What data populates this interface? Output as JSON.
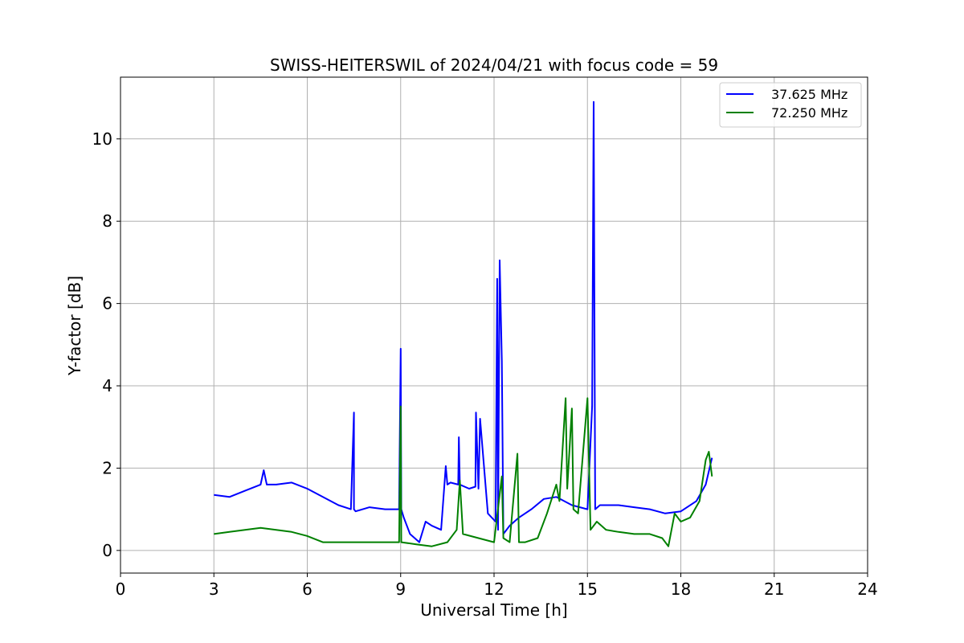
{
  "chart_data": {
    "type": "line",
    "title": "SWISS-HEITERSWIL of 2024/04/21 with focus code = 59",
    "xlabel": "Universal Time [h]",
    "ylabel": "Y-factor [dB]",
    "xlim": [
      0,
      24
    ],
    "ylim": [
      -0.55,
      11.5
    ],
    "xticks": [
      0,
      3,
      6,
      9,
      12,
      15,
      18,
      21,
      24
    ],
    "yticks": [
      0,
      2,
      4,
      6,
      8,
      10
    ],
    "xtick_labels": [
      "0",
      "3",
      "6",
      "9",
      "12",
      "15",
      "18",
      "21",
      "24"
    ],
    "ytick_labels": [
      "0",
      "2",
      "4",
      "6",
      "8",
      "10"
    ],
    "grid": true,
    "legend_position": "top-right",
    "series": [
      {
        "name": "37.625 MHz",
        "color": "#0000ff",
        "x": [
          3.0,
          3.5,
          4.0,
          4.5,
          4.6,
          4.7,
          5.0,
          5.5,
          6.0,
          6.5,
          7.0,
          7.4,
          7.5,
          7.5,
          7.55,
          8.0,
          8.5,
          8.95,
          9.0,
          9.02,
          9.1,
          9.3,
          9.6,
          9.8,
          10.0,
          10.3,
          10.45,
          10.5,
          10.6,
          10.85,
          10.87,
          10.9,
          11.2,
          11.4,
          11.42,
          11.5,
          11.55,
          11.8,
          12.05,
          12.1,
          12.13,
          12.18,
          12.25,
          12.3,
          12.5,
          12.8,
          13.2,
          13.6,
          14.0,
          14.5,
          15.0,
          15.15,
          15.2,
          15.25,
          15.4,
          16.0,
          16.5,
          17.0,
          17.5,
          18.0,
          18.5,
          18.8,
          19.0
        ],
        "y": [
          1.35,
          1.3,
          1.45,
          1.6,
          1.95,
          1.6,
          1.6,
          1.65,
          1.5,
          1.3,
          1.1,
          1.0,
          3.35,
          1.0,
          0.95,
          1.05,
          1.0,
          1.0,
          4.9,
          1.0,
          0.8,
          0.4,
          0.2,
          0.7,
          0.6,
          0.5,
          2.05,
          1.6,
          1.65,
          1.6,
          2.75,
          1.6,
          1.5,
          1.55,
          3.35,
          1.5,
          3.2,
          0.9,
          0.7,
          6.6,
          0.5,
          7.05,
          4.6,
          0.4,
          0.6,
          0.8,
          1.0,
          1.25,
          1.3,
          1.1,
          1.0,
          3.5,
          10.9,
          1.0,
          1.1,
          1.1,
          1.05,
          1.0,
          0.9,
          0.95,
          1.2,
          1.6,
          2.25
        ]
      },
      {
        "name": "72.250 MHz",
        "color": "#008000",
        "x": [
          3.0,
          3.5,
          4.0,
          4.5,
          5.0,
          5.5,
          6.0,
          6.5,
          7.0,
          7.5,
          8.0,
          8.5,
          8.95,
          9.0,
          9.02,
          9.5,
          10.0,
          10.5,
          10.8,
          10.9,
          11.0,
          11.5,
          12.0,
          12.25,
          12.3,
          12.5,
          12.75,
          12.8,
          13.0,
          13.4,
          13.7,
          14.0,
          14.1,
          14.3,
          14.35,
          14.5,
          14.55,
          14.7,
          15.0,
          15.1,
          15.3,
          15.6,
          16.0,
          16.5,
          17.0,
          17.4,
          17.6,
          17.8,
          18.0,
          18.3,
          18.6,
          18.8,
          18.9,
          19.0
        ],
        "y": [
          0.4,
          0.45,
          0.5,
          0.55,
          0.5,
          0.45,
          0.35,
          0.2,
          0.2,
          0.2,
          0.2,
          0.2,
          0.2,
          3.5,
          0.2,
          0.15,
          0.1,
          0.2,
          0.5,
          1.7,
          0.4,
          0.3,
          0.2,
          1.8,
          0.3,
          0.2,
          2.35,
          0.2,
          0.2,
          0.3,
          0.9,
          1.6,
          1.2,
          3.7,
          1.5,
          3.45,
          1.0,
          0.9,
          3.7,
          0.5,
          0.7,
          0.5,
          0.45,
          0.4,
          0.4,
          0.3,
          0.1,
          0.9,
          0.7,
          0.8,
          1.2,
          2.2,
          2.4,
          1.8
        ]
      }
    ]
  }
}
